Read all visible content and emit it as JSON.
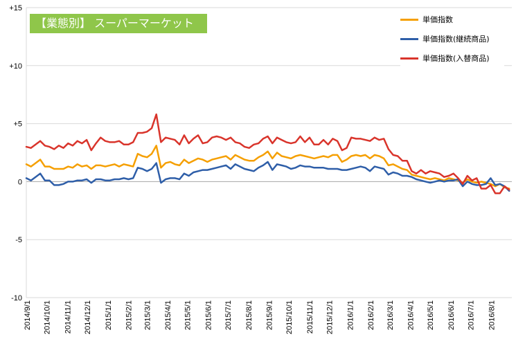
{
  "chart_data": {
    "type": "line",
    "title": "【業態別】 スーパーマーケット",
    "title_bg": "#8fc64a",
    "ylim": [
      -10,
      15
    ],
    "y_ticks": [
      {
        "value": 15,
        "label": "+15"
      },
      {
        "value": 10,
        "label": "+10"
      },
      {
        "value": 5,
        "label": "+5"
      },
      {
        "value": 0,
        "label": "0"
      },
      {
        "value": -5,
        "label": "-5"
      },
      {
        "value": -10,
        "label": "-10"
      }
    ],
    "grid": "horizontal",
    "legend_position": "top-right",
    "x_labels": [
      "2014/9/1",
      "2014/10/1",
      "2014/11/1",
      "2014/12/1",
      "2015/1/1",
      "2015/2/1",
      "2015/3/1",
      "2015/4/1",
      "2015/5/1",
      "2015/6/1",
      "2015/7/1",
      "2015/8/1",
      "2015/9/1",
      "2015/10/1",
      "2015/11/1",
      "2015/12/1",
      "2016/1/1",
      "2016/2/1",
      "2016/3/1",
      "2016/4/1",
      "2016/5/1",
      "2016/6/1",
      "2016/7/1",
      "2016/8/1"
    ],
    "x_range": [
      "2014-08-31",
      "2016-09-01"
    ],
    "x_dates": [
      "2014-08-31",
      "2014-09-07",
      "2014-09-14",
      "2014-09-21",
      "2014-09-28",
      "2014-10-05",
      "2014-10-12",
      "2014-10-19",
      "2014-10-26",
      "2014-11-02",
      "2014-11-09",
      "2014-11-16",
      "2014-11-23",
      "2014-11-30",
      "2014-12-07",
      "2014-12-14",
      "2014-12-21",
      "2014-12-28",
      "2015-01-04",
      "2015-01-11",
      "2015-01-18",
      "2015-01-25",
      "2015-02-01",
      "2015-02-08",
      "2015-02-15",
      "2015-02-22",
      "2015-03-01",
      "2015-03-08",
      "2015-03-15",
      "2015-03-22",
      "2015-03-29",
      "2015-04-05",
      "2015-04-12",
      "2015-04-19",
      "2015-04-26",
      "2015-05-03",
      "2015-05-10",
      "2015-05-17",
      "2015-05-24",
      "2015-05-31",
      "2015-06-07",
      "2015-06-14",
      "2015-06-21",
      "2015-06-28",
      "2015-07-05",
      "2015-07-12",
      "2015-07-19",
      "2015-07-26",
      "2015-08-02",
      "2015-08-09",
      "2015-08-16",
      "2015-08-23",
      "2015-08-30",
      "2015-09-06",
      "2015-09-13",
      "2015-09-20",
      "2015-09-27",
      "2015-10-04",
      "2015-10-11",
      "2015-10-18",
      "2015-10-25",
      "2015-11-01",
      "2015-11-08",
      "2015-11-15",
      "2015-11-22",
      "2015-11-29",
      "2015-12-06",
      "2015-12-13",
      "2015-12-20",
      "2015-12-27",
      "2016-01-03",
      "2016-01-10",
      "2016-01-17",
      "2016-01-24",
      "2016-01-31",
      "2016-02-07",
      "2016-02-14",
      "2016-02-21",
      "2016-02-28",
      "2016-03-06",
      "2016-03-13",
      "2016-03-20",
      "2016-03-27",
      "2016-04-03",
      "2016-04-10",
      "2016-04-17",
      "2016-04-24",
      "2016-05-01",
      "2016-05-08",
      "2016-05-15",
      "2016-05-22",
      "2016-05-29",
      "2016-06-05",
      "2016-06-12",
      "2016-06-19",
      "2016-06-26",
      "2016-07-03",
      "2016-07-10",
      "2016-07-17",
      "2016-07-24",
      "2016-07-31",
      "2016-08-07",
      "2016-08-14",
      "2016-08-21",
      "2016-08-28"
    ],
    "series": [
      {
        "name": "単価指数",
        "color": "#f59f00",
        "values": [
          1.5,
          1.3,
          1.6,
          1.9,
          1.3,
          1.3,
          1.1,
          1.1,
          1.1,
          1.3,
          1.2,
          1.5,
          1.3,
          1.4,
          1.1,
          1.4,
          1.4,
          1.3,
          1.4,
          1.5,
          1.3,
          1.5,
          1.4,
          1.3,
          2.4,
          2.2,
          2.1,
          2.4,
          3.1,
          1.2,
          1.6,
          1.7,
          1.5,
          1.4,
          1.9,
          1.6,
          1.8,
          2.0,
          1.9,
          1.7,
          1.9,
          2.0,
          2.1,
          2.2,
          1.9,
          2.3,
          2.1,
          1.9,
          1.8,
          1.8,
          2.1,
          2.3,
          2.6,
          2.0,
          2.5,
          2.2,
          2.1,
          2.0,
          2.2,
          2.3,
          2.2,
          2.1,
          2.0,
          2.1,
          2.2,
          2.1,
          2.3,
          2.3,
          1.7,
          1.9,
          2.2,
          2.3,
          2.2,
          2.3,
          2.0,
          2.3,
          2.2,
          2.0,
          1.4,
          1.5,
          1.3,
          1.1,
          1.0,
          0.6,
          0.5,
          0.4,
          0.3,
          0.2,
          0.3,
          0.2,
          0.1,
          0.3,
          0.2,
          0.1,
          -0.1,
          0.2,
          0.0,
          -0.1,
          0.0,
          -0.1,
          -0.2,
          -0.4,
          -0.2,
          -0.5,
          -0.6
        ]
      },
      {
        "name": "単価指数(継続商品)",
        "color": "#2e5ea8",
        "values": [
          0.3,
          0.1,
          0.4,
          0.7,
          0.1,
          0.1,
          -0.3,
          -0.3,
          -0.2,
          0.0,
          0.0,
          0.1,
          0.1,
          0.2,
          -0.1,
          0.2,
          0.2,
          0.1,
          0.1,
          0.2,
          0.2,
          0.3,
          0.2,
          0.3,
          1.2,
          1.1,
          0.9,
          1.1,
          1.6,
          -0.1,
          0.2,
          0.3,
          0.3,
          0.2,
          0.7,
          0.5,
          0.8,
          0.9,
          1.0,
          1.0,
          1.1,
          1.2,
          1.3,
          1.4,
          1.1,
          1.5,
          1.3,
          1.1,
          1.0,
          0.9,
          1.2,
          1.4,
          1.7,
          1.0,
          1.5,
          1.4,
          1.3,
          1.1,
          1.2,
          1.4,
          1.3,
          1.3,
          1.2,
          1.2,
          1.2,
          1.1,
          1.1,
          1.1,
          1.0,
          1.0,
          1.1,
          1.2,
          1.3,
          1.2,
          0.9,
          1.3,
          1.2,
          1.1,
          0.6,
          0.8,
          0.7,
          0.5,
          0.5,
          0.4,
          0.2,
          0.1,
          0.0,
          -0.1,
          0.0,
          0.1,
          0.0,
          0.1,
          0.1,
          0.2,
          -0.4,
          0.0,
          -0.2,
          -0.3,
          -0.3,
          -0.2,
          0.3,
          -0.3,
          -0.2,
          -0.4,
          -0.8
        ]
      },
      {
        "name": "単価指数(入替商品)",
        "color": "#d9342b",
        "values": [
          3.0,
          2.9,
          3.2,
          3.5,
          3.1,
          3.0,
          2.8,
          3.1,
          2.9,
          3.3,
          3.1,
          3.5,
          3.3,
          3.6,
          2.7,
          3.3,
          3.8,
          3.5,
          3.4,
          3.4,
          3.5,
          3.2,
          3.2,
          3.4,
          4.2,
          4.2,
          4.3,
          4.6,
          5.8,
          3.4,
          3.8,
          3.7,
          3.6,
          3.2,
          4.0,
          3.3,
          3.7,
          4.0,
          3.3,
          3.4,
          3.8,
          3.9,
          3.8,
          3.6,
          3.8,
          3.4,
          3.3,
          3.0,
          2.9,
          3.2,
          3.3,
          3.7,
          3.9,
          3.3,
          3.8,
          3.6,
          3.4,
          3.3,
          3.4,
          3.9,
          3.4,
          3.8,
          3.2,
          3.2,
          3.6,
          3.2,
          3.7,
          3.5,
          2.7,
          2.9,
          3.8,
          3.7,
          3.7,
          3.6,
          3.5,
          3.8,
          3.6,
          3.7,
          2.8,
          2.3,
          2.2,
          1.8,
          1.8,
          0.9,
          0.7,
          1.0,
          0.7,
          0.9,
          0.8,
          0.7,
          0.4,
          0.5,
          0.7,
          0.3,
          -0.2,
          0.5,
          0.1,
          0.3,
          -0.6,
          -0.6,
          -0.3,
          -1.0,
          -1.0,
          -0.4,
          -0.7
        ]
      }
    ]
  }
}
